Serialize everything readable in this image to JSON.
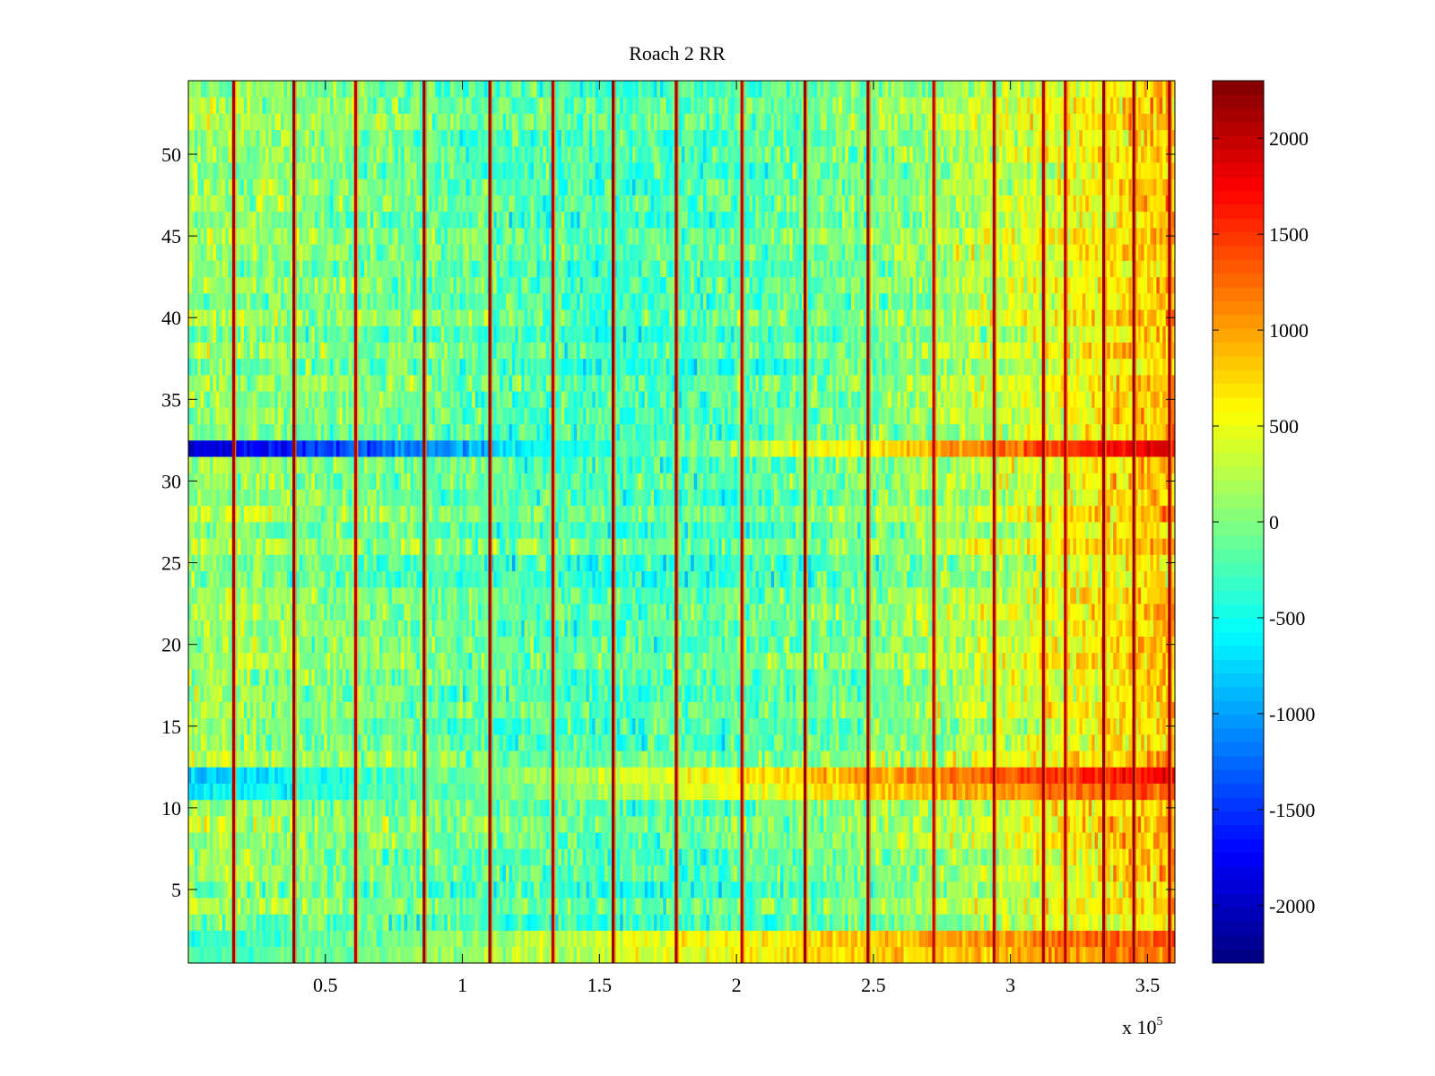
{
  "chart_data": {
    "type": "heatmap",
    "title": "Roach 2 RR",
    "xlabel": "",
    "ylabel": "",
    "x_exponent_label": "x 10",
    "x_exponent_power": "5",
    "x_range": [
      0,
      360000
    ],
    "y_range": [
      0.5,
      54.5
    ],
    "n_rows": 54,
    "x_ticks": [
      {
        "value": 0.5,
        "label": "0.5"
      },
      {
        "value": 1,
        "label": "1"
      },
      {
        "value": 1.5,
        "label": "1.5"
      },
      {
        "value": 2,
        "label": "2"
      },
      {
        "value": 2.5,
        "label": "2.5"
      },
      {
        "value": 3,
        "label": "3"
      },
      {
        "value": 3.5,
        "label": "3.5"
      }
    ],
    "y_ticks": [
      {
        "value": 5,
        "label": "5"
      },
      {
        "value": 10,
        "label": "10"
      },
      {
        "value": 15,
        "label": "15"
      },
      {
        "value": 20,
        "label": "20"
      },
      {
        "value": 25,
        "label": "25"
      },
      {
        "value": 30,
        "label": "30"
      },
      {
        "value": 35,
        "label": "35"
      },
      {
        "value": 40,
        "label": "40"
      },
      {
        "value": 45,
        "label": "45"
      },
      {
        "value": 50,
        "label": "50"
      }
    ],
    "colorbar": {
      "colormap": "jet",
      "range": [
        -2300,
        2300
      ],
      "ticks": [
        {
          "value": 2000,
          "label": "2000"
        },
        {
          "value": 1500,
          "label": "1500"
        },
        {
          "value": 1000,
          "label": "1000"
        },
        {
          "value": 500,
          "label": "500"
        },
        {
          "value": 0,
          "label": "0"
        },
        {
          "value": -500,
          "label": "-500"
        },
        {
          "value": -1000,
          "label": "-1000"
        },
        {
          "value": -1500,
          "label": "-1500"
        },
        {
          "value": -2000,
          "label": "-2000"
        }
      ]
    },
    "trend": {
      "x_start": 0,
      "x_end": 360000,
      "value_start": 150,
      "value_mid": -250,
      "value_mid_x": 150000,
      "value_end": 900
    },
    "row_anomalies": [
      {
        "row": 32,
        "value_start": -2000,
        "value_end": 1900
      },
      {
        "row": 12,
        "value_start": -800,
        "value_end": 1800
      },
      {
        "row": 11,
        "value_start": -700,
        "value_end": 1400
      },
      {
        "row": 2,
        "value_start": -400,
        "value_end": 1400
      },
      {
        "row": 1,
        "value_start": -300,
        "value_end": 1200
      }
    ],
    "column_events": [
      {
        "x": 16500,
        "value": 2100
      },
      {
        "x": 38500,
        "value": 2200
      },
      {
        "x": 61000,
        "value": 2000
      },
      {
        "x": 86000,
        "value": 2200
      },
      {
        "x": 110000,
        "value": 2200
      },
      {
        "x": 133000,
        "value": 2000
      },
      {
        "x": 155000,
        "value": 2200
      },
      {
        "x": 178000,
        "value": 2100
      },
      {
        "x": 202000,
        "value": 2000
      },
      {
        "x": 225000,
        "value": 2200
      },
      {
        "x": 248000,
        "value": 2200
      },
      {
        "x": 272000,
        "value": 2000
      },
      {
        "x": 294000,
        "value": 2100
      },
      {
        "x": 312000,
        "value": 2100
      },
      {
        "x": 320000,
        "value": 2000
      },
      {
        "x": 334000,
        "value": 2200
      },
      {
        "x": 345000,
        "value": 2200
      },
      {
        "x": 358000,
        "value": 2100
      }
    ]
  }
}
